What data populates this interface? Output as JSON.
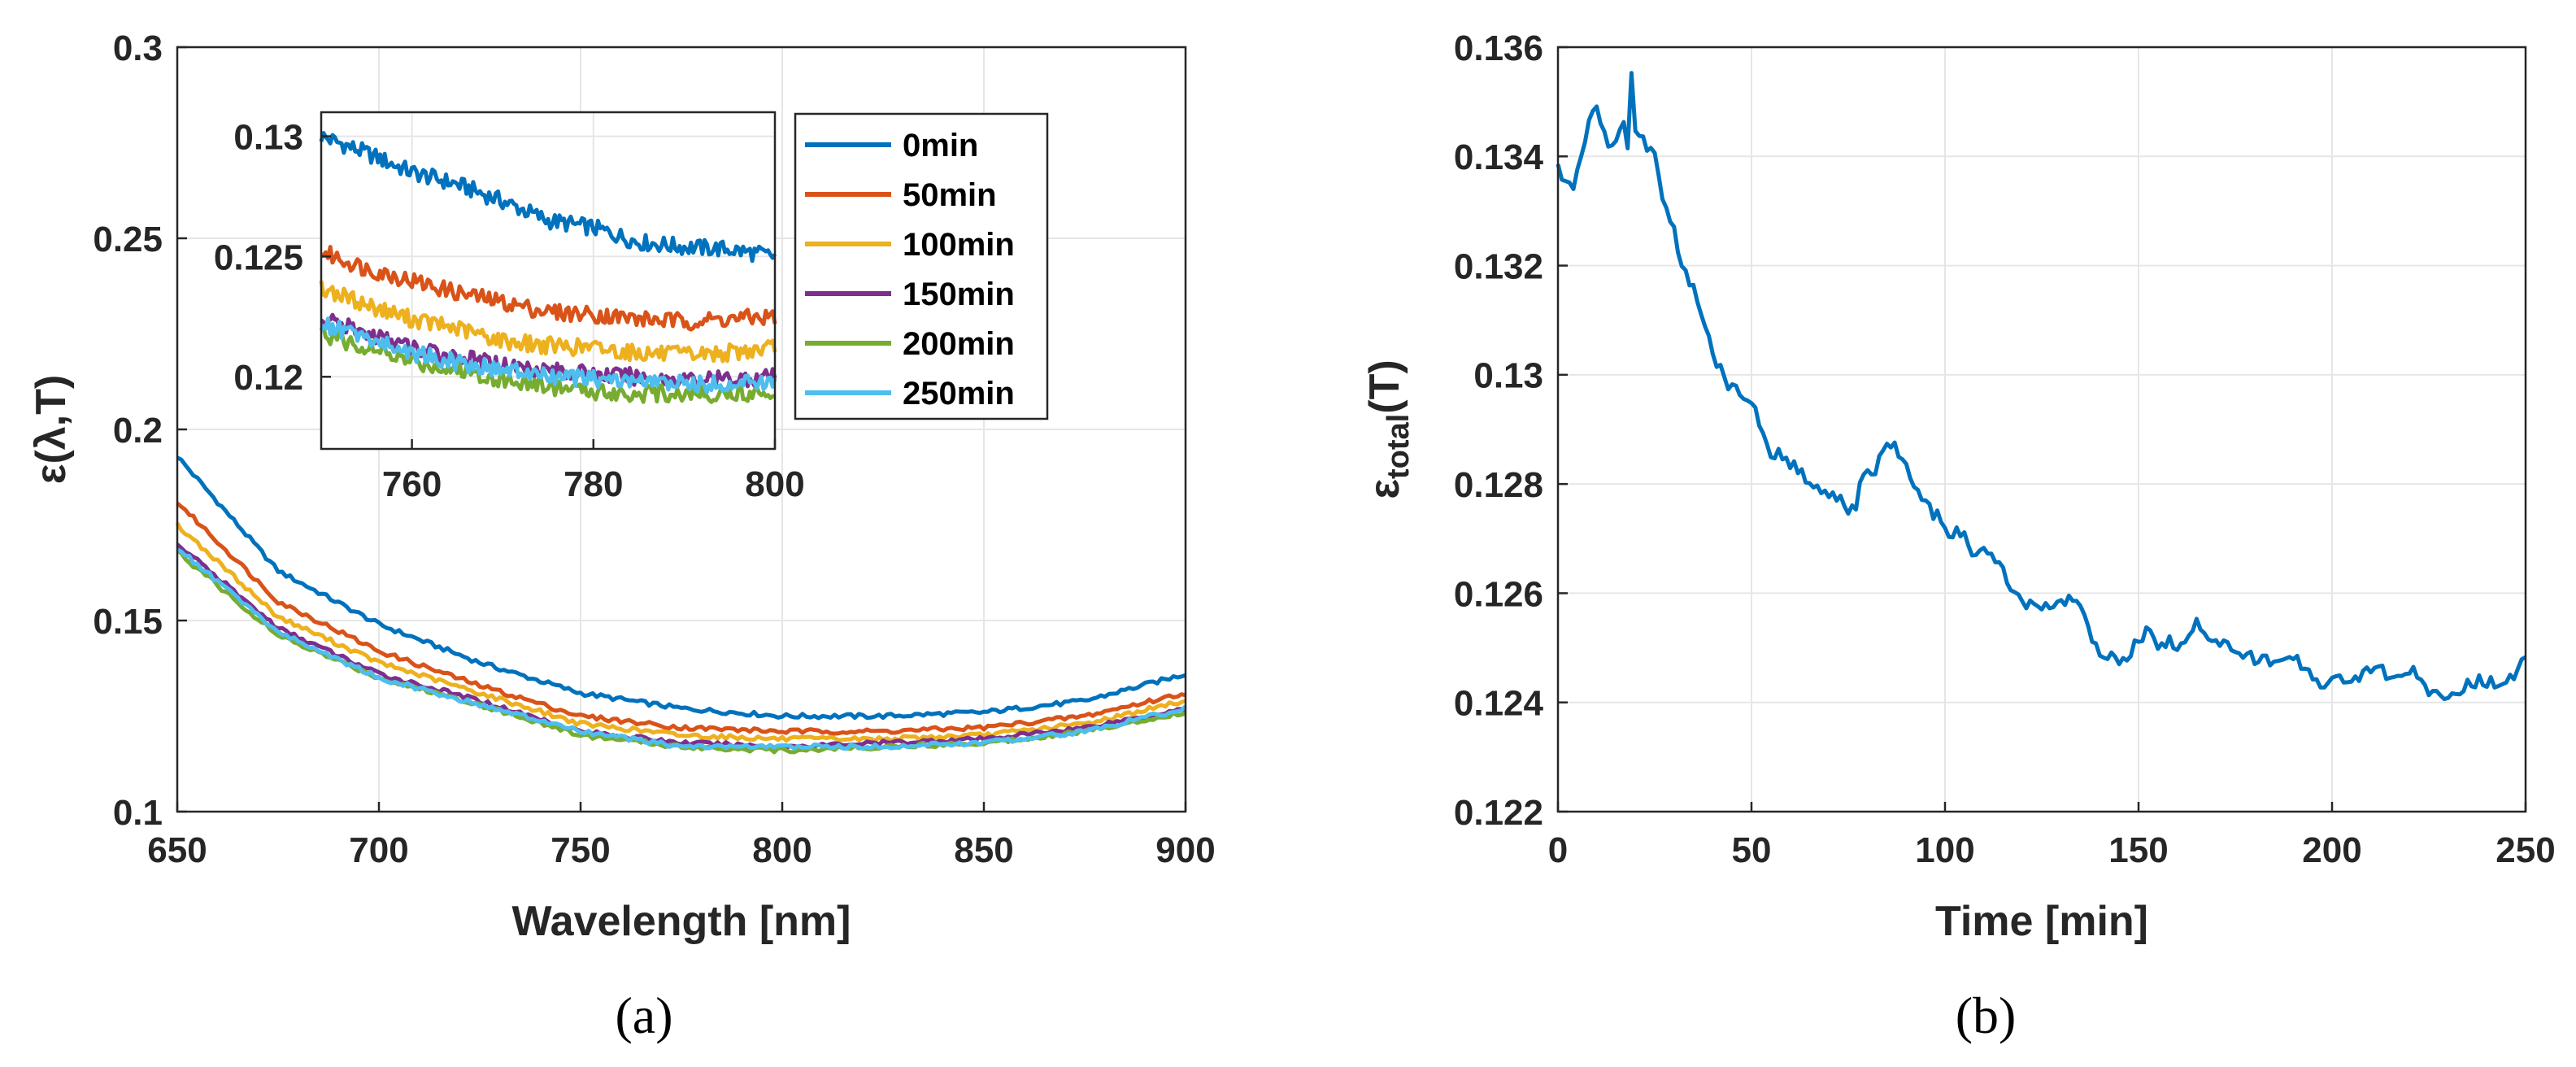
{
  "chart_data": [
    {
      "id": "a",
      "panel_label": "(a)",
      "type": "line",
      "xlabel": "Wavelength [nm]",
      "ylabel": "ε(λ,T)",
      "xlim": [
        650,
        900
      ],
      "ylim": [
        0.1,
        0.3
      ],
      "xticks": [
        "650",
        "700",
        "750",
        "800",
        "850",
        "900"
      ],
      "yticks": [
        "0.1",
        "0.15",
        "0.2",
        "0.25",
        "0.3"
      ],
      "grid": true,
      "x": [
        650,
        675,
        700,
        725,
        750,
        775,
        800,
        825,
        850,
        875,
        900
      ],
      "series": [
        {
          "name": "0min",
          "color": "#0072BD",
          "values": [
            0.193,
            0.163,
            0.149,
            0.139,
            0.131,
            0.127,
            0.125,
            0.125,
            0.126,
            0.129,
            0.136
          ]
        },
        {
          "name": "50min",
          "color": "#D95319",
          "values": [
            0.181,
            0.155,
            0.142,
            0.133,
            0.125,
            0.122,
            0.121,
            0.121,
            0.122,
            0.125,
            0.131
          ]
        },
        {
          "name": "100min",
          "color": "#EDB120",
          "values": [
            0.175,
            0.151,
            0.139,
            0.131,
            0.123,
            0.12,
            0.119,
            0.119,
            0.12,
            0.123,
            0.129
          ]
        },
        {
          "name": "150min",
          "color": "#7E2F8E",
          "values": [
            0.17,
            0.148,
            0.136,
            0.129,
            0.121,
            0.118,
            0.117,
            0.118,
            0.119,
            0.122,
            0.127
          ]
        },
        {
          "name": "200min",
          "color": "#77AC30",
          "values": [
            0.168,
            0.146,
            0.135,
            0.128,
            0.12,
            0.117,
            0.116,
            0.117,
            0.118,
            0.121,
            0.126
          ]
        },
        {
          "name": "250min",
          "color": "#4DBEEE",
          "values": [
            0.169,
            0.147,
            0.135,
            0.128,
            0.121,
            0.117,
            0.117,
            0.117,
            0.118,
            0.121,
            0.127
          ]
        }
      ],
      "legend": {
        "placement": "top-right",
        "entries": [
          "0min",
          "50min",
          "100min",
          "150min",
          "200min",
          "250min"
        ]
      },
      "inset": {
        "type": "line",
        "xlim": [
          750,
          800
        ],
        "ylim": [
          0.117,
          0.131
        ],
        "xticks": [
          "760",
          "780",
          "800"
        ],
        "yticks": [
          "0.12",
          "0.125",
          "0.13"
        ],
        "x": [
          750,
          755,
          760,
          765,
          770,
          775,
          780,
          785,
          790,
          795,
          800
        ],
        "series": [
          {
            "name": "0min",
            "color": "#0072BD",
            "values": [
              0.13,
              0.1293,
              0.1285,
              0.128,
              0.1273,
              0.1265,
              0.1262,
              0.1256,
              0.1254,
              0.1253,
              0.125
            ]
          },
          {
            "name": "50min",
            "color": "#D95319",
            "values": [
              0.1252,
              0.1245,
              0.124,
              0.1235,
              0.1231,
              0.1227,
              0.1226,
              0.1224,
              0.1223,
              0.1224,
              0.1225
            ]
          },
          {
            "name": "100min",
            "color": "#EDB120",
            "values": [
              0.1237,
              0.123,
              0.1224,
              0.122,
              0.1215,
              0.1213,
              0.1212,
              0.121,
              0.1209,
              0.121,
              0.1212
            ]
          },
          {
            "name": "150min",
            "color": "#7E2F8E",
            "values": [
              0.1224,
              0.1218,
              0.1212,
              0.1208,
              0.1205,
              0.1203,
              0.1201,
              0.12,
              0.1199,
              0.1199,
              0.12
            ]
          },
          {
            "name": "200min",
            "color": "#77AC30",
            "values": [
              0.1218,
              0.1212,
              0.1206,
              0.1203,
              0.1199,
              0.1196,
              0.1194,
              0.1193,
              0.1193,
              0.1193,
              0.1194
            ]
          },
          {
            "name": "250min",
            "color": "#4DBEEE",
            "values": [
              0.1222,
              0.1216,
              0.121,
              0.1206,
              0.1203,
              0.12,
              0.1199,
              0.1198,
              0.1197,
              0.1197,
              0.1198
            ]
          }
        ]
      }
    },
    {
      "id": "b",
      "panel_label": "(b)",
      "type": "line",
      "xlabel": "Time [min]",
      "ylabel_main": "ε",
      "ylabel_sub": "total",
      "ylabel_tail": "(T)",
      "xlim": [
        0,
        250
      ],
      "ylim": [
        0.122,
        0.136
      ],
      "xticks": [
        "0",
        "50",
        "100",
        "150",
        "200",
        "250"
      ],
      "yticks": [
        "0.122",
        "0.124",
        "0.126",
        "0.128",
        "0.13",
        "0.132",
        "0.134",
        "0.136"
      ],
      "grid": true,
      "series": [
        {
          "name": "ε_total(T)",
          "color": "#0072BD",
          "x": [
            0,
            2,
            4,
            6,
            8,
            10,
            12,
            14,
            16,
            17,
            18,
            19,
            20,
            22,
            25,
            28,
            30,
            33,
            35,
            38,
            40,
            43,
            45,
            48,
            50,
            53,
            55,
            58,
            60,
            63,
            65,
            68,
            70,
            73,
            75,
            77,
            78,
            80,
            82,
            85,
            88,
            90,
            93,
            95,
            98,
            100,
            103,
            105,
            108,
            110,
            113,
            115,
            118,
            120,
            123,
            125,
            128,
            130,
            133,
            135,
            138,
            140,
            143,
            145,
            148,
            150,
            153,
            155,
            158,
            160,
            163,
            165,
            168,
            170,
            173,
            175,
            178,
            180,
            183,
            185,
            188,
            190,
            193,
            195,
            198,
            200,
            203,
            205,
            208,
            210,
            213,
            215,
            218,
            220,
            223,
            225,
            228,
            230,
            233,
            235,
            238,
            240,
            243,
            245,
            248,
            250
          ],
          "values": [
            0.1338,
            0.1335,
            0.1334,
            0.134,
            0.1347,
            0.1349,
            0.1344,
            0.1341,
            0.1345,
            0.1347,
            0.1342,
            0.1355,
            0.1345,
            0.1343,
            0.134,
            0.133,
            0.1326,
            0.1318,
            0.1316,
            0.131,
            0.1304,
            0.1299,
            0.1298,
            0.1295,
            0.1296,
            0.1289,
            0.1286,
            0.1285,
            0.1284,
            0.1282,
            0.128,
            0.1279,
            0.1277,
            0.1278,
            0.1275,
            0.1276,
            0.128,
            0.1282,
            0.1282,
            0.1288,
            0.1286,
            0.1283,
            0.1278,
            0.1276,
            0.1274,
            0.1271,
            0.1271,
            0.127,
            0.1267,
            0.1268,
            0.1266,
            0.1264,
            0.126,
            0.1258,
            0.1258,
            0.1257,
            0.1258,
            0.1258,
            0.1259,
            0.1257,
            0.1252,
            0.1249,
            0.1248,
            0.1247,
            0.1249,
            0.1252,
            0.1253,
            0.1251,
            0.1251,
            0.125,
            0.1253,
            0.1255,
            0.1252,
            0.1251,
            0.125,
            0.1249,
            0.1249,
            0.1248,
            0.1248,
            0.1247,
            0.1247,
            0.1248,
            0.1247,
            0.1245,
            0.1243,
            0.1244,
            0.1244,
            0.1245,
            0.1245,
            0.1246,
            0.1246,
            0.1244,
            0.1246,
            0.1246,
            0.1244,
            0.1241,
            0.1241,
            0.1242,
            0.1242,
            0.1243,
            0.1244,
            0.1244,
            0.1243,
            0.1244,
            0.1245,
            0.1249
          ]
        }
      ]
    }
  ]
}
